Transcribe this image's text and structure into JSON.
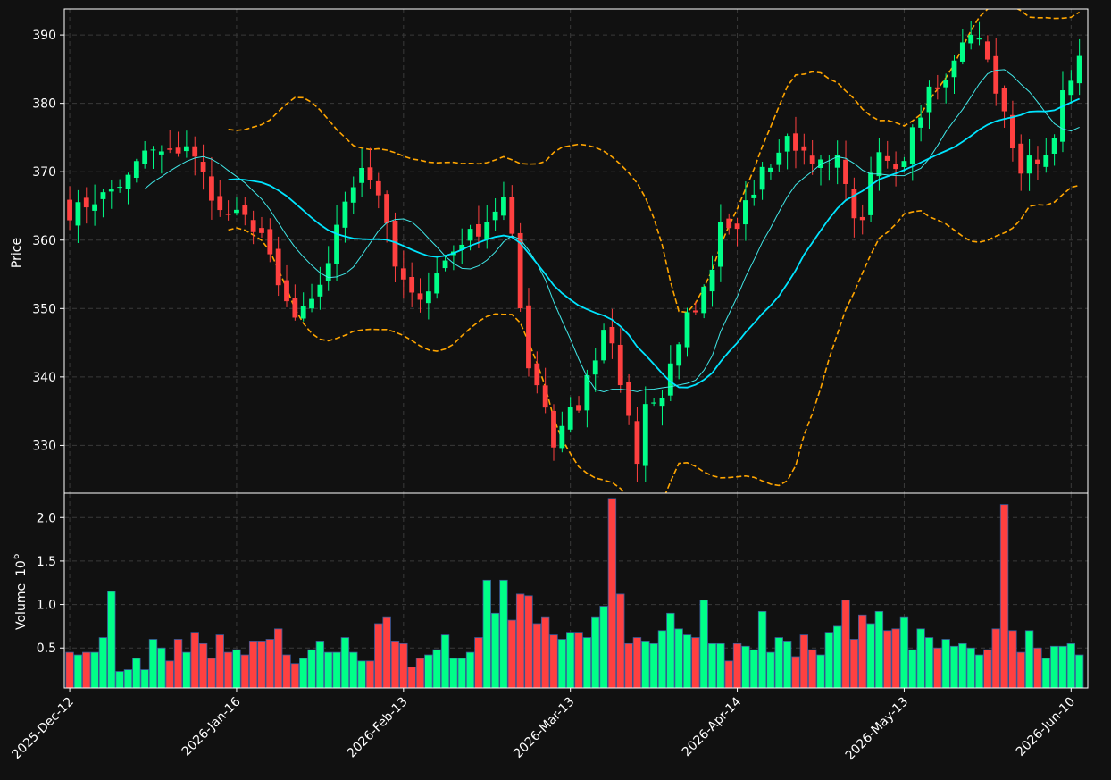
{
  "chart_data": {
    "type": "candlestick",
    "title": "",
    "colors": {
      "background": "#111111",
      "up": "#00ff88",
      "down": "#ff4040",
      "ma_fast": "#40e8e8",
      "ma_slow": "#00e5ff",
      "bands": "#ffa500",
      "grid": "#3a3a3a",
      "frame": "#ffffff"
    },
    "price_panel": {
      "ylabel": "Price",
      "ylim": [
        323,
        393.8
      ],
      "yticks": [
        330,
        340,
        350,
        360,
        370,
        380,
        390
      ],
      "grid": true
    },
    "volume_panel": {
      "ylabel": "Volume",
      "ylabel_exponent": "10",
      "ylabel_power": "6",
      "ylim": [
        0.04,
        2.28
      ],
      "yticks": [
        0.5,
        1.0,
        1.5,
        2.0
      ],
      "ytick_labels": [
        "0.5",
        "1.0",
        "1.5",
        "2.0"
      ],
      "grid": true
    },
    "x_axis": {
      "n_bars": 122,
      "ticks": [
        {
          "index": 0,
          "label": "2025-Dec-12"
        },
        {
          "index": 20,
          "label": "2026-Jan-16"
        },
        {
          "index": 40,
          "label": "2026-Feb-13"
        },
        {
          "index": 60,
          "label": "2026-Mar-13"
        },
        {
          "index": 80,
          "label": "2026-Apr-14"
        },
        {
          "index": 100,
          "label": "2026-May-13"
        },
        {
          "index": 120,
          "label": "2026-Jun-10"
        }
      ]
    },
    "close_anchors": [
      [
        0,
        364
      ],
      [
        4,
        366.5
      ],
      [
        7,
        369
      ],
      [
        9,
        373
      ],
      [
        12,
        372.5
      ],
      [
        14,
        374
      ],
      [
        16,
        369.5
      ],
      [
        18,
        364
      ],
      [
        20,
        363.5
      ],
      [
        21,
        363
      ],
      [
        23,
        361
      ],
      [
        25,
        353
      ],
      [
        27,
        348.5
      ],
      [
        29,
        350.5
      ],
      [
        31,
        357
      ],
      [
        33,
        366
      ],
      [
        35,
        371
      ],
      [
        37,
        367
      ],
      [
        39,
        356
      ],
      [
        41,
        351.5
      ],
      [
        43,
        353
      ],
      [
        45,
        357
      ],
      [
        47,
        360
      ],
      [
        49,
        361.5
      ],
      [
        51,
        364.5
      ],
      [
        52,
        366
      ],
      [
        53,
        360
      ],
      [
        54,
        350
      ],
      [
        55,
        342
      ],
      [
        57,
        336
      ],
      [
        58,
        330
      ],
      [
        60,
        336
      ],
      [
        61,
        335
      ],
      [
        62,
        340
      ],
      [
        64,
        346
      ],
      [
        65,
        345
      ],
      [
        66,
        338
      ],
      [
        67,
        334
      ],
      [
        68,
        327
      ],
      [
        69,
        336
      ],
      [
        71,
        336.5
      ],
      [
        72,
        341
      ],
      [
        73,
        345
      ],
      [
        74,
        349
      ],
      [
        75,
        350
      ],
      [
        76,
        353
      ],
      [
        77,
        356
      ],
      [
        78,
        363
      ],
      [
        80,
        361
      ],
      [
        81,
        365
      ],
      [
        83,
        370
      ],
      [
        85,
        373
      ],
      [
        86,
        376
      ],
      [
        88,
        372
      ],
      [
        90,
        371.5
      ],
      [
        92,
        372.5
      ],
      [
        93,
        368
      ],
      [
        94,
        364
      ],
      [
        95,
        362
      ],
      [
        96,
        369
      ],
      [
        97,
        372
      ],
      [
        99,
        369.5
      ],
      [
        100,
        371
      ],
      [
        101,
        377
      ],
      [
        102,
        379
      ],
      [
        103,
        383
      ],
      [
        104,
        383
      ],
      [
        106,
        386
      ],
      [
        107,
        389.5
      ],
      [
        109,
        389.5
      ],
      [
        110,
        386
      ],
      [
        111,
        382
      ],
      [
        112,
        378
      ],
      [
        113,
        374
      ],
      [
        114,
        370
      ],
      [
        115,
        371.5
      ],
      [
        117,
        372.5
      ],
      [
        118,
        376
      ],
      [
        119,
        381
      ],
      [
        120,
        383
      ],
      [
        121,
        386
      ]
    ],
    "sma_fast_period": 10,
    "sma_slow_period": 20,
    "bollinger_std": 2,
    "volume_anchors": [
      [
        0,
        0.45
      ],
      [
        1,
        0.42
      ],
      [
        2,
        0.45
      ],
      [
        3,
        0.45
      ],
      [
        4,
        0.62
      ],
      [
        5,
        1.15
      ],
      [
        6,
        0.23
      ],
      [
        7,
        0.25
      ],
      [
        8,
        0.38
      ],
      [
        9,
        0.25
      ],
      [
        10,
        0.6
      ],
      [
        11,
        0.5
      ],
      [
        12,
        0.35
      ],
      [
        13,
        0.6
      ],
      [
        14,
        0.45
      ],
      [
        15,
        0.68
      ],
      [
        16,
        0.55
      ],
      [
        17,
        0.38
      ],
      [
        18,
        0.65
      ],
      [
        19,
        0.45
      ],
      [
        20,
        0.48
      ],
      [
        21,
        0.42
      ],
      [
        22,
        0.58
      ],
      [
        23,
        0.58
      ],
      [
        24,
        0.6
      ],
      [
        25,
        0.72
      ],
      [
        26,
        0.42
      ],
      [
        27,
        0.32
      ],
      [
        28,
        0.38
      ],
      [
        29,
        0.48
      ],
      [
        30,
        0.58
      ],
      [
        31,
        0.45
      ],
      [
        32,
        0.45
      ],
      [
        33,
        0.62
      ],
      [
        34,
        0.45
      ],
      [
        35,
        0.35
      ],
      [
        36,
        0.35
      ],
      [
        37,
        0.78
      ],
      [
        38,
        0.85
      ],
      [
        39,
        0.58
      ],
      [
        40,
        0.55
      ],
      [
        41,
        0.28
      ],
      [
        42,
        0.38
      ],
      [
        43,
        0.42
      ],
      [
        44,
        0.48
      ],
      [
        45,
        0.65
      ],
      [
        46,
        0.38
      ],
      [
        47,
        0.38
      ],
      [
        48,
        0.45
      ],
      [
        49,
        0.62
      ],
      [
        50,
        1.28
      ],
      [
        51,
        0.9
      ],
      [
        52,
        1.28
      ],
      [
        53,
        0.82
      ],
      [
        54,
        1.12
      ],
      [
        55,
        1.1
      ],
      [
        56,
        0.78
      ],
      [
        57,
        0.85
      ],
      [
        58,
        0.65
      ],
      [
        59,
        0.6
      ],
      [
        60,
        0.68
      ],
      [
        61,
        0.68
      ],
      [
        62,
        0.62
      ],
      [
        63,
        0.85
      ],
      [
        64,
        0.98
      ],
      [
        65,
        2.22
      ],
      [
        66,
        1.12
      ],
      [
        67,
        0.55
      ],
      [
        68,
        0.62
      ],
      [
        69,
        0.58
      ],
      [
        70,
        0.55
      ],
      [
        71,
        0.7
      ],
      [
        72,
        0.9
      ],
      [
        73,
        0.72
      ],
      [
        74,
        0.65
      ],
      [
        75,
        0.62
      ],
      [
        76,
        1.05
      ],
      [
        77,
        0.55
      ],
      [
        78,
        0.55
      ],
      [
        79,
        0.35
      ],
      [
        80,
        0.55
      ],
      [
        81,
        0.52
      ],
      [
        82,
        0.48
      ],
      [
        83,
        0.92
      ],
      [
        84,
        0.45
      ],
      [
        85,
        0.62
      ],
      [
        86,
        0.58
      ],
      [
        87,
        0.4
      ],
      [
        88,
        0.65
      ],
      [
        89,
        0.48
      ],
      [
        90,
        0.42
      ],
      [
        91,
        0.68
      ],
      [
        92,
        0.75
      ],
      [
        93,
        1.05
      ],
      [
        94,
        0.6
      ],
      [
        95,
        0.88
      ],
      [
        96,
        0.78
      ],
      [
        97,
        0.92
      ],
      [
        98,
        0.7
      ],
      [
        99,
        0.72
      ],
      [
        100,
        0.85
      ],
      [
        101,
        0.48
      ],
      [
        102,
        0.72
      ],
      [
        103,
        0.62
      ],
      [
        104,
        0.5
      ],
      [
        105,
        0.6
      ],
      [
        106,
        0.52
      ],
      [
        107,
        0.55
      ],
      [
        108,
        0.5
      ],
      [
        109,
        0.42
      ],
      [
        110,
        0.48
      ],
      [
        111,
        0.72
      ],
      [
        112,
        2.15
      ],
      [
        113,
        0.7
      ],
      [
        114,
        0.45
      ],
      [
        115,
        0.7
      ],
      [
        116,
        0.5
      ],
      [
        117,
        0.38
      ],
      [
        118,
        0.52
      ],
      [
        119,
        0.52
      ],
      [
        120,
        0.55
      ],
      [
        121,
        0.42
      ]
    ]
  }
}
